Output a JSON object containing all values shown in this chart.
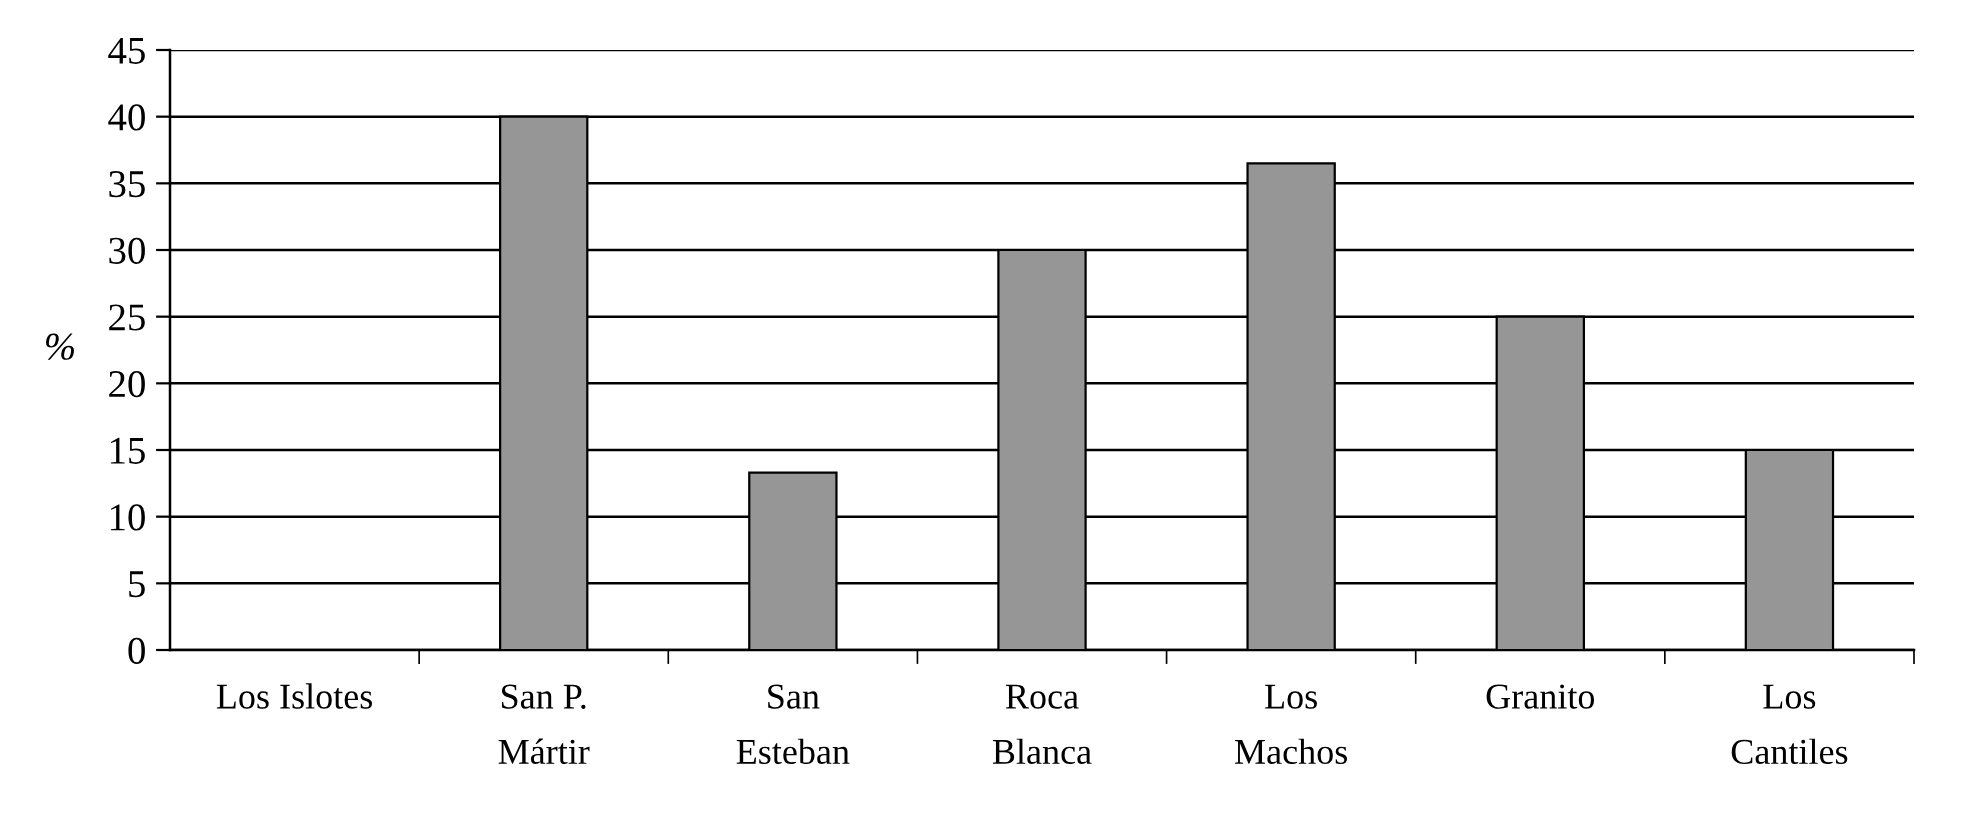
{
  "chart_data": {
    "type": "bar",
    "ylabel": "%",
    "categories": [
      "Los Islotes",
      "San P.\nMártir",
      "San\nEsteban",
      "Roca\nBlanca",
      "Los\nMachos",
      "Granito",
      "Los\nCantiles"
    ],
    "values": [
      0,
      40,
      13.3,
      30,
      36.5,
      25,
      15
    ],
    "color": "#969696",
    "ylim": [
      0,
      45
    ],
    "yticks": [
      0,
      5,
      10,
      15,
      20,
      25,
      30,
      35,
      40,
      45
    ],
    "grid": "y",
    "legend": false
  }
}
